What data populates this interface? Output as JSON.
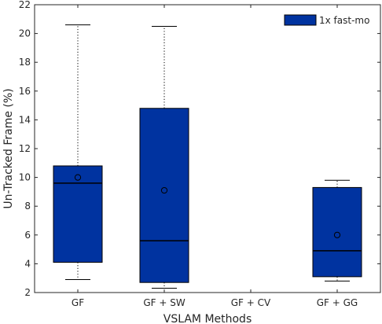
{
  "chart_data": {
    "type": "boxplot",
    "title": "",
    "xlabel": "VSLAM Methods",
    "ylabel": "Un-Tracked Frame (%)",
    "ylim": [
      2,
      22
    ],
    "yticks": [
      2,
      4,
      6,
      8,
      10,
      12,
      14,
      16,
      18,
      20,
      22
    ],
    "categories": [
      "GF",
      "GF + SW",
      "GF + CV",
      "GF + GG"
    ],
    "series": [
      {
        "name": "1x fast-mo",
        "color": "#0033a0",
        "boxes": [
          {
            "whisker_low": 2.9,
            "q1": 4.1,
            "median": 9.6,
            "q3": 10.8,
            "whisker_high": 20.6,
            "mean": 10.0
          },
          {
            "whisker_low": 2.3,
            "q1": 2.7,
            "median": 5.6,
            "q3": 14.8,
            "whisker_high": 20.5,
            "mean": 9.1
          },
          null,
          {
            "whisker_low": 2.8,
            "q1": 3.1,
            "median": 4.9,
            "q3": 9.3,
            "whisker_high": 9.8,
            "mean": 6.0
          }
        ]
      }
    ],
    "grid": false,
    "legend_position": "top-right"
  }
}
